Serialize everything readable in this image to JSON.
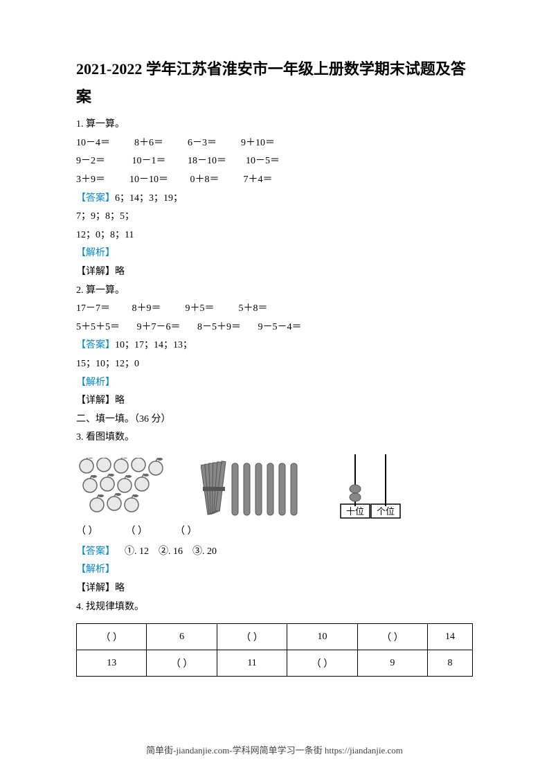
{
  "title": "2021-2022 学年江苏省淮安市一年级上册数学期末试题及答案",
  "q1": {
    "header": "1. 算一算。",
    "row1": "10－4＝          8＋6＝          6－3＝          9＋10＝",
    "row2": "9－2＝           10－1＝         18－10＝        10－5＝",
    "row3": "3＋9＝          10－10＝         0＋8＝          7＋4＝",
    "answer_label": "【答案】",
    "answer1": "6；14；3；19；",
    "answer2": "7；9；8；5；",
    "answer3": "12；0；8；11",
    "analysis_label": "【解析】",
    "detail": "【详解】略"
  },
  "q2": {
    "header": "2. 算一算。",
    "row1": "17－7＝         8＋9＝          9＋5＝          5＋8＝",
    "row2": "5＋5＋5＝       9＋7－6＝       8－5＋9＝       9－5－4＝",
    "answer_label": "【答案】",
    "answer1": "10；17；14；13；",
    "answer2": "15；10；12；0",
    "analysis_label": "【解析】",
    "detail": "【详解】略"
  },
  "section2": "二、填一填。（36 分）",
  "q3": {
    "header": "3. 看图填数。",
    "blank1": "（        ）",
    "blank2": "（        ）",
    "blank3": "（        ）",
    "answer_label": "【答案】",
    "answer_text": "    ①. 12    ②. 16    ③. 20",
    "analysis_label": "【解析】",
    "detail": "【详解】略",
    "abacus_tens": "十位",
    "abacus_ones": "个位",
    "apple_count": 12,
    "bundle_sticks": 10,
    "loose_sticks": 6,
    "colors": {
      "apple_fill": "#e8e8e8",
      "apple_stroke": "#666666",
      "stick_fill": "#888888",
      "stick_stroke": "#555555",
      "abacus_stroke": "#000000",
      "bead_fill": "#888888"
    }
  },
  "q4": {
    "header": "4. 找规律填数。",
    "table": {
      "row1": [
        "（        ）",
        "6",
        "（        ）",
        "10",
        "（        ）",
        "14"
      ],
      "row2": [
        "13",
        "（        ）",
        "11",
        "（        ）",
        "9",
        "8"
      ]
    }
  },
  "footer": "简单街-jiandanjie.com-学科网简单学习一条街 https://jiandanjie.com"
}
